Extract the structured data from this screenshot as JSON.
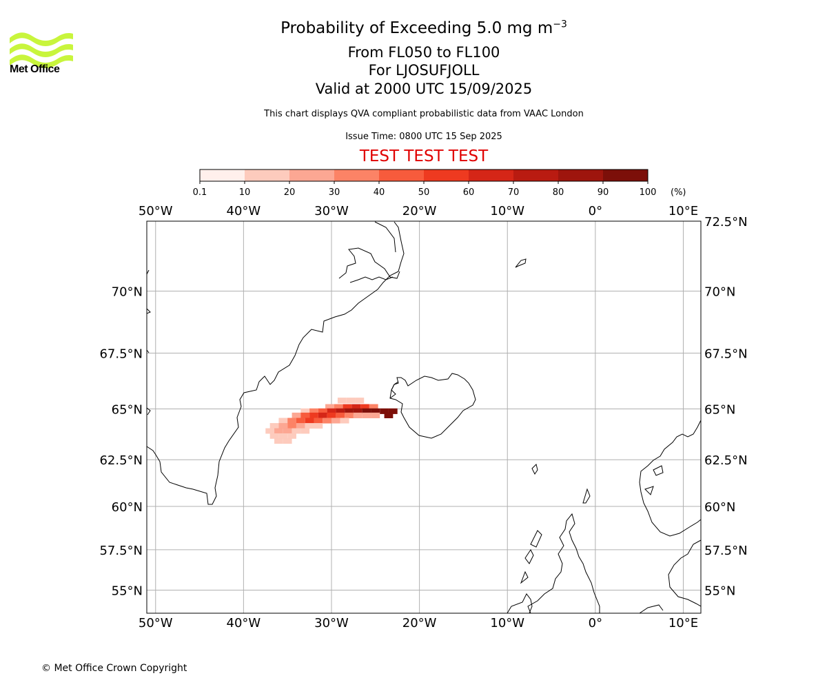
{
  "header": {
    "title": "Probability of Exceeding 5.0 mg m",
    "title_superscript": "−3",
    "line1": "From FL050 to FL100",
    "line2": "For LJOSUFJOLL",
    "line3": "Valid at 2000 UTC 15/09/2025",
    "description": "This chart displays QVA compliant probabilistic data from VAAC London",
    "issue_time": "Issue Time: 0800 UTC 15 Sep 2025",
    "test_banner": "TEST TEST TEST",
    "test_color": "#e00000"
  },
  "logo": {
    "text": "Met Office",
    "color": "#c8f53c",
    "icon": "met-office-waves-logo"
  },
  "colorbar": {
    "ticks": [
      "0.1",
      "10",
      "20",
      "30",
      "40",
      "50",
      "60",
      "70",
      "80",
      "90",
      "100"
    ],
    "unit": "(%)",
    "colors": [
      "#fff0ec",
      "#fdcbbd",
      "#fca793",
      "#fc8366",
      "#f75b3c",
      "#ee3a20",
      "#d52617",
      "#b91b11",
      "#9e150d",
      "#7c0f09",
      "#5a0906"
    ]
  },
  "map": {
    "lon_range": [
      -51,
      12
    ],
    "lat_range": [
      53.5,
      72.5
    ],
    "lon_ticks": [
      "50°W",
      "40°W",
      "30°W",
      "20°W",
      "10°W",
      "0°",
      "10°E"
    ],
    "lat_ticks": [
      "72.5°N",
      "70°N",
      "67.5°N",
      "65°N",
      "62.5°N",
      "60°N",
      "57.5°N",
      "55°N"
    ],
    "grid": true,
    "plume_cells": [
      {
        "lon": -28.8,
        "lat": 65.4,
        "p": 15
      },
      {
        "lon": -27.8,
        "lat": 65.4,
        "p": 15
      },
      {
        "lon": -26.8,
        "lat": 65.4,
        "p": 15
      },
      {
        "lon": -30.2,
        "lat": 65.1,
        "p": 20
      },
      {
        "lon": -29.2,
        "lat": 65.1,
        "p": 35
      },
      {
        "lon": -28.2,
        "lat": 65.1,
        "p": 50
      },
      {
        "lon": -27.2,
        "lat": 65.1,
        "p": 65
      },
      {
        "lon": -26.2,
        "lat": 65.1,
        "p": 55
      },
      {
        "lon": -25.2,
        "lat": 65.1,
        "p": 30
      },
      {
        "lon": -33.0,
        "lat": 64.9,
        "p": 15
      },
      {
        "lon": -32.0,
        "lat": 64.9,
        "p": 30
      },
      {
        "lon": -31.0,
        "lat": 64.9,
        "p": 45
      },
      {
        "lon": -30.0,
        "lat": 64.9,
        "p": 60
      },
      {
        "lon": -29.0,
        "lat": 64.9,
        "p": 75
      },
      {
        "lon": -28.0,
        "lat": 64.9,
        "p": 85
      },
      {
        "lon": -27.0,
        "lat": 64.9,
        "p": 88
      },
      {
        "lon": -26.0,
        "lat": 64.9,
        "p": 90
      },
      {
        "lon": -25.0,
        "lat": 64.9,
        "p": 92
      },
      {
        "lon": -24.0,
        "lat": 64.9,
        "p": 95
      },
      {
        "lon": -23.0,
        "lat": 64.9,
        "p": 98
      },
      {
        "lon": -34.0,
        "lat": 64.7,
        "p": 25
      },
      {
        "lon": -33.0,
        "lat": 64.7,
        "p": 45
      },
      {
        "lon": -32.0,
        "lat": 64.7,
        "p": 55
      },
      {
        "lon": -31.0,
        "lat": 64.7,
        "p": 60
      },
      {
        "lon": -30.0,
        "lat": 64.7,
        "p": 50
      },
      {
        "lon": -29.0,
        "lat": 64.7,
        "p": 40
      },
      {
        "lon": -28.0,
        "lat": 64.7,
        "p": 30
      },
      {
        "lon": -27.0,
        "lat": 64.7,
        "p": 25
      },
      {
        "lon": -26.0,
        "lat": 64.7,
        "p": 25
      },
      {
        "lon": -25.0,
        "lat": 64.7,
        "p": 20
      },
      {
        "lon": -23.5,
        "lat": 64.7,
        "p": 95
      },
      {
        "lon": -35.5,
        "lat": 64.45,
        "p": 15
      },
      {
        "lon": -34.5,
        "lat": 64.45,
        "p": 30
      },
      {
        "lon": -33.5,
        "lat": 64.45,
        "p": 40
      },
      {
        "lon": -32.5,
        "lat": 64.45,
        "p": 55
      },
      {
        "lon": -31.5,
        "lat": 64.45,
        "p": 45
      },
      {
        "lon": -30.5,
        "lat": 64.45,
        "p": 30
      },
      {
        "lon": -29.5,
        "lat": 64.45,
        "p": 20
      },
      {
        "lon": -28.5,
        "lat": 64.45,
        "p": 10
      },
      {
        "lon": -36.5,
        "lat": 64.2,
        "p": 15
      },
      {
        "lon": -35.5,
        "lat": 64.2,
        "p": 25
      },
      {
        "lon": -34.5,
        "lat": 64.2,
        "p": 30
      },
      {
        "lon": -33.5,
        "lat": 64.2,
        "p": 20
      },
      {
        "lon": -32.5,
        "lat": 64.2,
        "p": 15
      },
      {
        "lon": -31.5,
        "lat": 64.2,
        "p": 10
      },
      {
        "lon": -37.0,
        "lat": 63.95,
        "p": 10
      },
      {
        "lon": -36.0,
        "lat": 63.95,
        "p": 20
      },
      {
        "lon": -35.0,
        "lat": 63.95,
        "p": 25
      },
      {
        "lon": -34.0,
        "lat": 63.95,
        "p": 15
      },
      {
        "lon": -33.0,
        "lat": 63.95,
        "p": 10
      },
      {
        "lon": -36.5,
        "lat": 63.7,
        "p": 10
      },
      {
        "lon": -35.5,
        "lat": 63.7,
        "p": 15
      },
      {
        "lon": -34.5,
        "lat": 63.7,
        "p": 10
      },
      {
        "lon": -36.0,
        "lat": 63.45,
        "p": 10
      },
      {
        "lon": -35.0,
        "lat": 63.45,
        "p": 10
      }
    ]
  },
  "footer": {
    "copyright": "© Met Office Crown Copyright"
  }
}
